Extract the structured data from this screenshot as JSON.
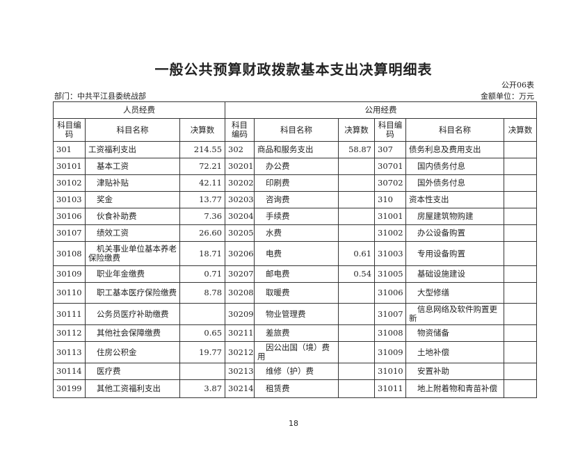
{
  "title": "一般公共预算财政拨款基本支出决算明细表",
  "form_no": "公开06表",
  "department": "部门：中共平江县委统战部",
  "unit": "金额单位：万元",
  "groups": {
    "personnel": "人员经费",
    "public": "公用经费"
  },
  "headers": {
    "code": "科目编码",
    "name": "科目名称",
    "amount": "决算数"
  },
  "rows": [
    [
      {
        "c": "301",
        "n": "工资福利支出",
        "a": "214.55",
        "t": 0
      },
      {
        "c": "302",
        "n": "商品和服务支出",
        "a": "58.87",
        "t": 0
      },
      {
        "c": "307",
        "n": "债务利息及费用支出",
        "a": "",
        "t": 0
      }
    ],
    [
      {
        "c": "30101",
        "n": "基本工资",
        "a": "72.21",
        "t": 1
      },
      {
        "c": "30201",
        "n": "办公费",
        "a": "",
        "t": 1
      },
      {
        "c": "30701",
        "n": "国内债务付息",
        "a": "",
        "t": 1
      }
    ],
    [
      {
        "c": "30102",
        "n": "津贴补贴",
        "a": "42.11",
        "t": 1
      },
      {
        "c": "30202",
        "n": "印刷费",
        "a": "",
        "t": 1
      },
      {
        "c": "30702",
        "n": "国外债务付息",
        "a": "",
        "t": 1
      }
    ],
    [
      {
        "c": "30103",
        "n": "奖金",
        "a": "13.77",
        "t": 1
      },
      {
        "c": "30203",
        "n": "咨询费",
        "a": "",
        "t": 1
      },
      {
        "c": "310",
        "n": "资本性支出",
        "a": "",
        "t": 0
      }
    ],
    [
      {
        "c": "30106",
        "n": "伙食补助费",
        "a": "7.36",
        "t": 1
      },
      {
        "c": "30204",
        "n": "手续费",
        "a": "",
        "t": 1
      },
      {
        "c": "31001",
        "n": "房屋建筑物购建",
        "a": "",
        "t": 1
      }
    ],
    [
      {
        "c": "30107",
        "n": "绩效工资",
        "a": "26.60",
        "t": 1
      },
      {
        "c": "30205",
        "n": "水费",
        "a": "",
        "t": 1
      },
      {
        "c": "31002",
        "n": "办公设备购置",
        "a": "",
        "t": 1
      }
    ],
    [
      {
        "c": "30108",
        "n": "机关事业单位基本养老保险缴费",
        "a": "18.71",
        "t": 1
      },
      {
        "c": "30206",
        "n": "电费",
        "a": "0.61",
        "t": 1
      },
      {
        "c": "31003",
        "n": "专用设备购置",
        "a": "",
        "t": 1
      }
    ],
    [
      {
        "c": "30109",
        "n": "职业年金缴费",
        "a": "0.71",
        "t": 1
      },
      {
        "c": "30207",
        "n": "邮电费",
        "a": "0.54",
        "t": 1
      },
      {
        "c": "31005",
        "n": "基础设施建设",
        "a": "",
        "t": 1
      }
    ],
    [
      {
        "c": "30110",
        "n": "职工基本医疗保险缴费",
        "a": "8.78",
        "t": 1
      },
      {
        "c": "30208",
        "n": "取暖费",
        "a": "",
        "t": 1
      },
      {
        "c": "31006",
        "n": "大型修缮",
        "a": "",
        "t": 1
      }
    ],
    [
      {
        "c": "30111",
        "n": "公务员医疗补助缴费",
        "a": "",
        "t": 1
      },
      {
        "c": "30209",
        "n": "物业管理费",
        "a": "",
        "t": 1
      },
      {
        "c": "31007",
        "n": "信息网络及软件购置更新",
        "a": "",
        "t": 1
      }
    ],
    [
      {
        "c": "30112",
        "n": "其他社会保障缴费",
        "a": "0.65",
        "t": 1
      },
      {
        "c": "30211",
        "n": "差旅费",
        "a": "",
        "t": 1
      },
      {
        "c": "31008",
        "n": "物资储备",
        "a": "",
        "t": 1
      }
    ],
    [
      {
        "c": "30113",
        "n": "住房公积金",
        "a": "19.77",
        "t": 1
      },
      {
        "c": "30212",
        "n": "因公出国（境）费用",
        "a": "",
        "t": 1
      },
      {
        "c": "31009",
        "n": "土地补偿",
        "a": "",
        "t": 1
      }
    ],
    [
      {
        "c": "30114",
        "n": "医疗费",
        "a": "",
        "t": 1
      },
      {
        "c": "30213",
        "n": "维修（护）费",
        "a": "",
        "t": 1
      },
      {
        "c": "31010",
        "n": "安置补助",
        "a": "",
        "t": 1
      }
    ],
    [
      {
        "c": "30199",
        "n": "其他工资福利支出",
        "a": "3.87",
        "t": 1
      },
      {
        "c": "30214",
        "n": "租赁费",
        "a": "",
        "t": 1
      },
      {
        "c": "31011",
        "n": "地上附着物和青苗补偿",
        "a": "",
        "t": 1
      }
    ]
  ],
  "page_number": "18"
}
